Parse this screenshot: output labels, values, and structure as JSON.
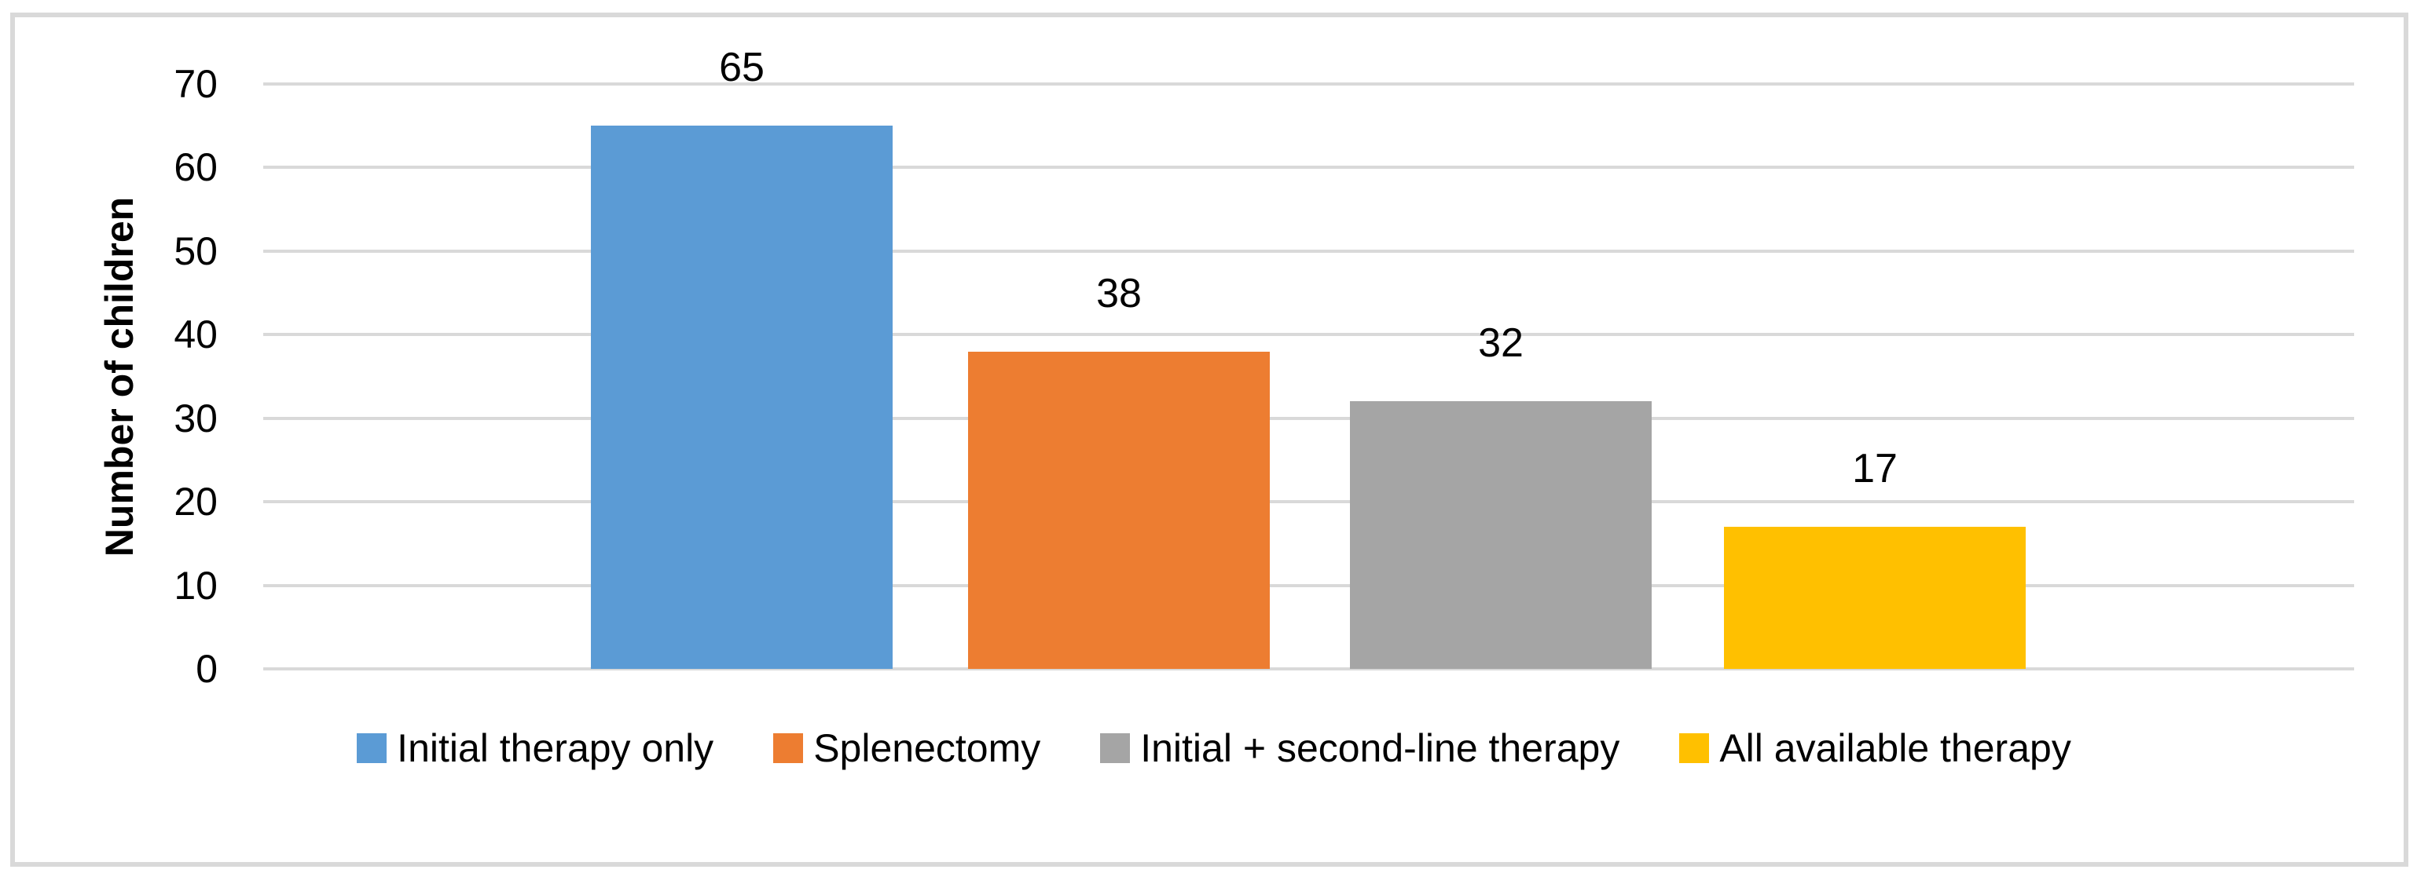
{
  "chart_data": {
    "type": "bar",
    "title": "",
    "xlabel": "",
    "ylabel": "Number of children",
    "categories": [
      "Initial therapy only",
      "Splenectomy",
      "Initial + second-line therapy",
      "All available therapy"
    ],
    "values": [
      65,
      38,
      32,
      17
    ],
    "data_labels": [
      "65",
      "38",
      "32",
      "17"
    ],
    "bar_colors": [
      "#5B9BD5",
      "#ED7D31",
      "#A5A5A5",
      "#FFC000"
    ],
    "ylim": [
      0,
      70
    ],
    "yticks": [
      0,
      10,
      20,
      30,
      40,
      50,
      60,
      70
    ],
    "grid": "horizontal",
    "gridline_color": "#D9D9D9",
    "frame_color": "#D9D9D9",
    "background_color": "#FFFFFF",
    "legend_position": "bottom",
    "legend": [
      {
        "label": "Initial therapy only",
        "color": "#5B9BD5"
      },
      {
        "label": "Splenectomy",
        "color": "#ED7D31"
      },
      {
        "label": "Initial + second-line therapy",
        "color": "#A5A5A5"
      },
      {
        "label": "All available therapy",
        "color": "#FFC000"
      }
    ]
  }
}
